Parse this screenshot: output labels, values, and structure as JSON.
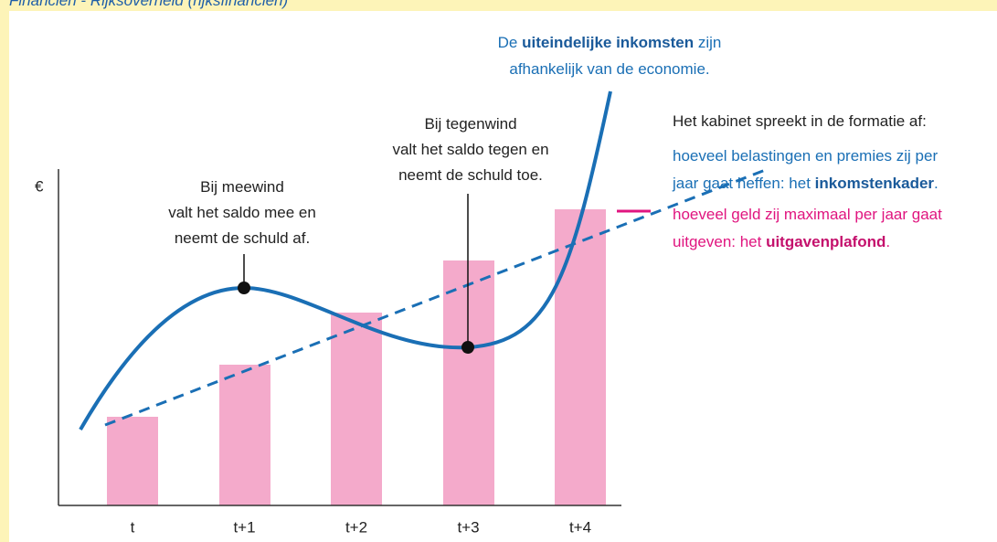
{
  "header": {
    "title": "Financiën - Rijksoverheid (rijksfinanciën)"
  },
  "diagram": {
    "y_axis_label": "€",
    "x_labels": [
      "t",
      "t+1",
      "t+2",
      "t+3",
      "t+4"
    ],
    "meewind_note": {
      "lines": [
        [
          {
            "text": "Bij meewind"
          }
        ],
        [
          {
            "text": "valt het saldo mee en"
          }
        ],
        [
          {
            "text": "neemt de schuld af."
          }
        ]
      ]
    },
    "tegenwind_note": {
      "lines": [
        [
          {
            "text": "Bij tegenwind"
          }
        ],
        [
          {
            "text": "valt het saldo tegen en"
          }
        ],
        [
          {
            "text": "neemt de schuld toe."
          }
        ]
      ]
    },
    "inkomsten_note": {
      "lines": [
        [
          {
            "text": "De "
          },
          {
            "text": "uiteindelijke inkomsten",
            "bold": true
          },
          {
            "text": " zijn"
          }
        ],
        [
          {
            "text": "afhankelijk van de economie."
          }
        ]
      ]
    },
    "legend": {
      "intro": {
        "lines": [
          [
            {
              "text": "Het kabinet spreekt in de formatie af:"
            }
          ]
        ]
      },
      "inkomstenkader": {
        "lines": [
          [
            {
              "text": "hoeveel belastingen en premies zij per"
            }
          ],
          [
            {
              "text": "jaar gaat heffen: het "
            },
            {
              "text": "inkomstenkader",
              "bold": true
            },
            {
              "text": "."
            }
          ]
        ]
      },
      "uitgavenplafond": {
        "lines": [
          [
            {
              "text": "hoeveel geld zij maximaal per jaar gaat"
            }
          ],
          [
            {
              "text": "uitgeven: het "
            },
            {
              "text": "uitgavenplafond",
              "bold": true
            },
            {
              "text": "."
            }
          ]
        ]
      }
    }
  }
}
